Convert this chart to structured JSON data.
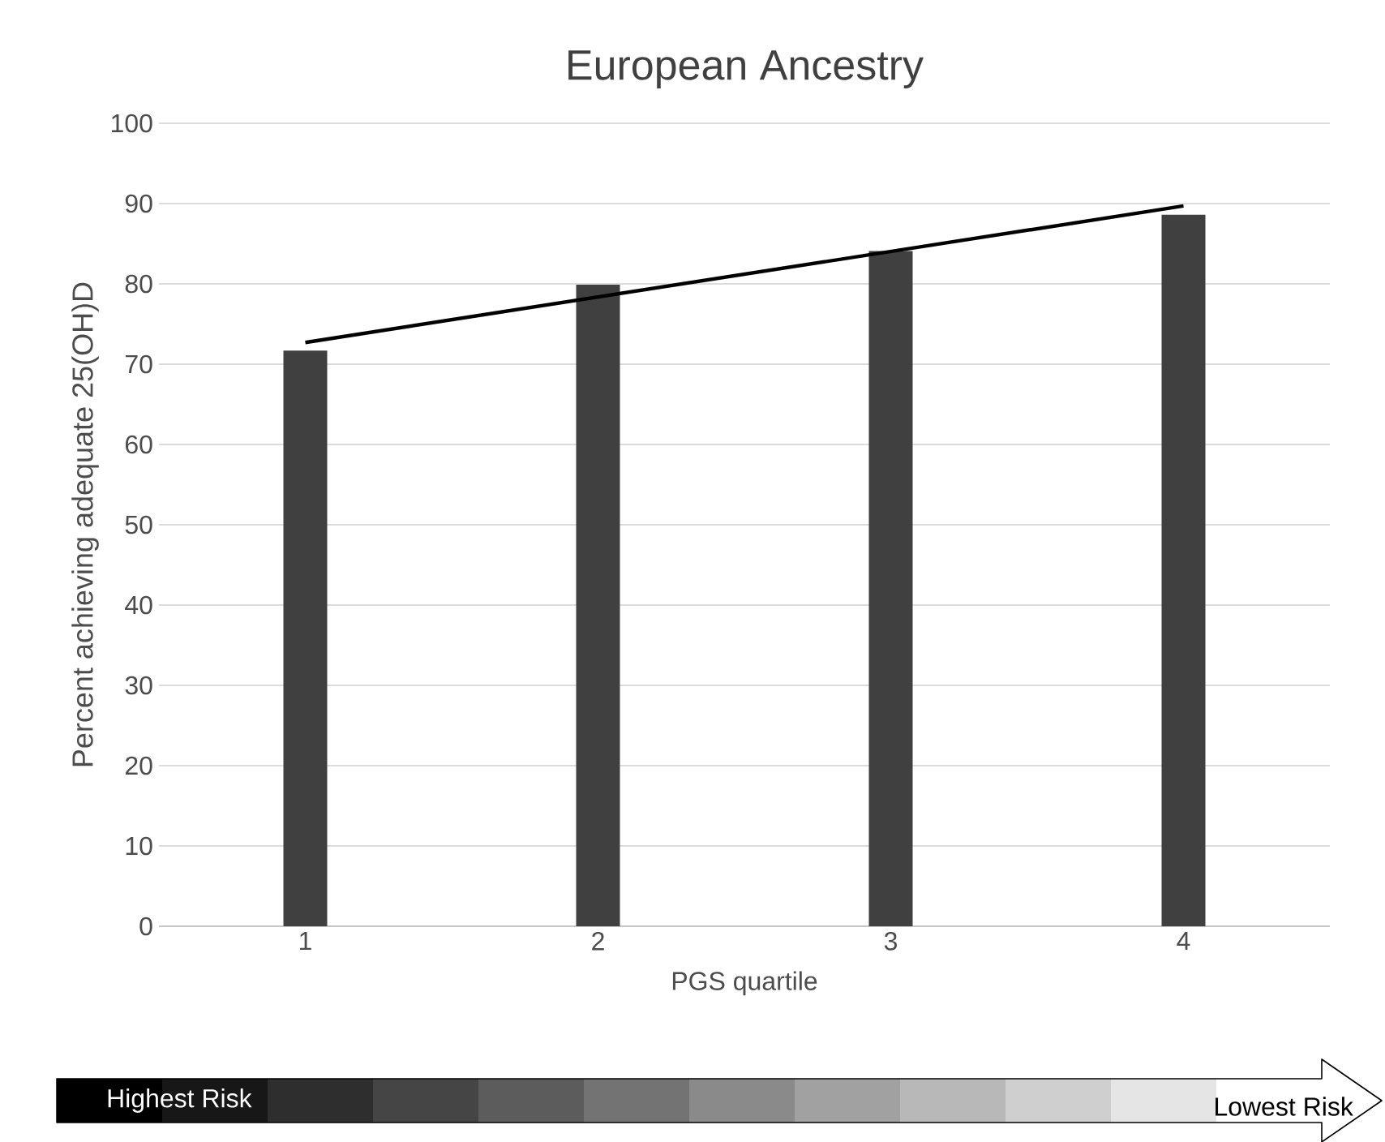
{
  "chart_data": {
    "type": "bar",
    "title": "European Ancestry",
    "xlabel": "PGS quartile",
    "ylabel": "Percent achieving adequate 25(OH)D",
    "categories": [
      "1",
      "2",
      "3",
      "4"
    ],
    "series": [
      {
        "color": "#404040",
        "values": [
          71.7,
          79.9,
          84.1,
          88.6
        ]
      },
      {
        "type": "line",
        "color": "#000000",
        "x": [
          "1",
          "4"
        ],
        "values": [
          72.7,
          89.7
        ]
      }
    ],
    "ylim": [
      0,
      100
    ],
    "yticks": [
      0,
      10,
      20,
      30,
      40,
      50,
      60,
      70,
      80,
      90,
      100
    ],
    "grid": "y",
    "annotations": [
      "Highest Risk",
      "Lowest Risk"
    ]
  }
}
